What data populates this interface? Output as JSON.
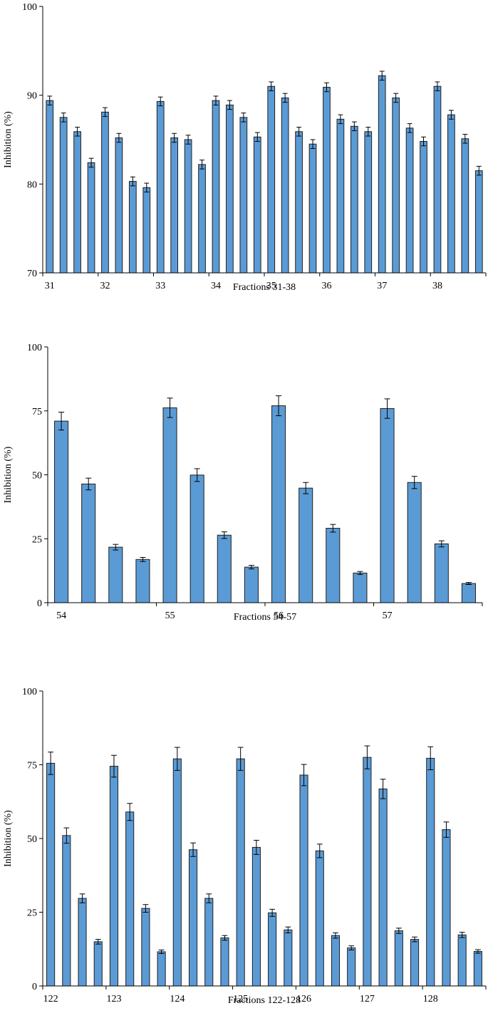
{
  "chart_data": [
    {
      "type": "bar",
      "xlabel": "Fractions 31-38",
      "ylabel": "Inhibition (%)",
      "ylim": [
        70,
        100
      ],
      "yticks": [
        70,
        80,
        90,
        100
      ],
      "category_labels": [
        "31",
        "32",
        "33",
        "34",
        "35",
        "36",
        "37",
        "38"
      ],
      "bars_per_category": 4,
      "values": [
        89.4,
        87.5,
        85.9,
        82.4,
        88.1,
        85.2,
        80.3,
        79.6,
        89.3,
        85.2,
        85.0,
        82.2,
        89.4,
        88.9,
        87.5,
        85.3,
        91.0,
        89.7,
        85.9,
        84.5,
        90.9,
        87.3,
        86.5,
        85.9,
        92.2,
        89.7,
        86.3,
        84.8,
        91.0,
        87.8,
        85.1,
        81.5
      ],
      "errors": [
        0.5,
        0.5,
        0.5,
        0.5,
        0.5,
        0.5,
        0.5,
        0.5,
        0.5,
        0.5,
        0.5,
        0.5,
        0.5,
        0.5,
        0.5,
        0.5,
        0.5,
        0.5,
        0.5,
        0.5,
        0.5,
        0.5,
        0.5,
        0.5,
        0.5,
        0.5,
        0.5,
        0.5,
        0.5,
        0.5,
        0.5,
        0.5
      ]
    },
    {
      "type": "bar",
      "xlabel": "Fractions 54-57",
      "ylabel": "Inhibition (%)",
      "ylim": [
        0,
        100
      ],
      "yticks": [
        0,
        25,
        50,
        75,
        100
      ],
      "category_labels": [
        "54",
        "55",
        "56",
        "57"
      ],
      "bars_per_category": 4,
      "values": [
        71.0,
        46.4,
        21.7,
        16.9,
        76.2,
        49.9,
        26.4,
        13.9,
        77.0,
        44.8,
        29.1,
        11.6,
        75.9,
        47.0,
        23.0,
        7.5
      ],
      "errors": [
        3.5,
        2.3,
        1.1,
        0.8,
        3.8,
        2.5,
        1.3,
        0.7,
        3.9,
        2.2,
        1.5,
        0.6,
        3.8,
        2.4,
        1.2,
        0.4
      ]
    },
    {
      "type": "bar",
      "xlabel": "Fractions 122-128",
      "ylabel": "Inhibition (%)",
      "ylim": [
        0,
        100
      ],
      "yticks": [
        0,
        25,
        50,
        75,
        100
      ],
      "category_labels": [
        "122",
        "123",
        "124",
        "125",
        "126",
        "127",
        "128"
      ],
      "bars_per_category": 4,
      "values": [
        75.5,
        51.0,
        29.7,
        15.0,
        74.5,
        59.0,
        26.3,
        11.6,
        77.0,
        46.2,
        29.7,
        16.3,
        77.0,
        47.0,
        24.8,
        19.0,
        71.5,
        45.8,
        17.1,
        12.9,
        77.5,
        66.8,
        18.7,
        15.8,
        77.2,
        53.0,
        17.3,
        11.7
      ],
      "errors": [
        3.8,
        2.6,
        1.5,
        0.8,
        3.7,
        2.9,
        1.3,
        0.6,
        3.9,
        2.3,
        1.5,
        0.8,
        3.9,
        2.4,
        1.2,
        1.0,
        3.6,
        2.3,
        0.9,
        0.7,
        3.9,
        3.3,
        0.9,
        0.8,
        3.9,
        2.6,
        0.9,
        0.6
      ]
    }
  ]
}
